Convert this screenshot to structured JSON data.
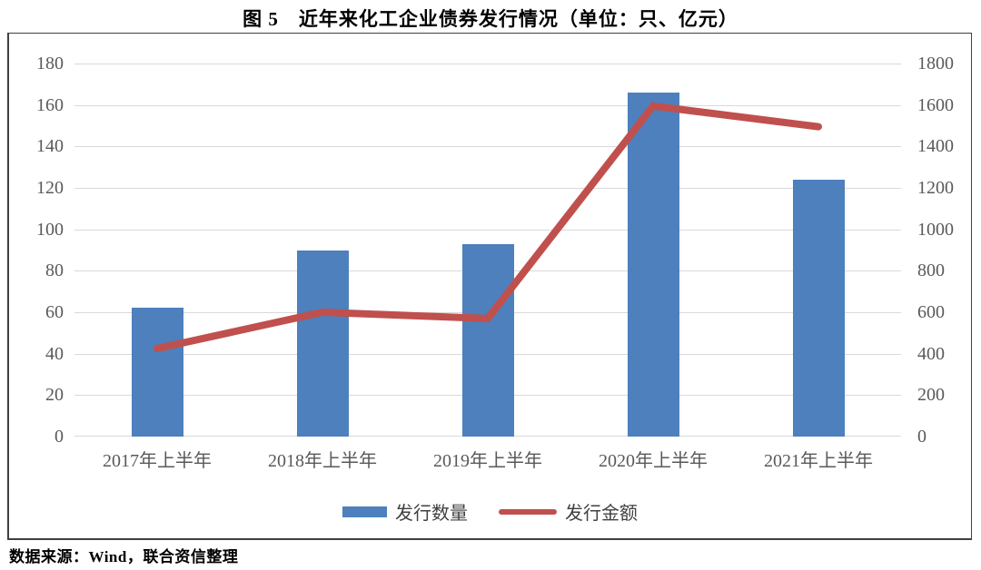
{
  "figure": {
    "title": "图 5　近年来化工企业债券发行情况（单位：只、亿元）",
    "source": "数据来源：Wind，联合资信整理"
  },
  "chart_data": {
    "type": "bar",
    "subtype": "bar-line-combo-dual-axis",
    "title": "图 5　近年来化工企业债券发行情况（单位：只、亿元）",
    "categories": [
      "2017年上半年",
      "2018年上半年",
      "2019年上半年",
      "2020年上半年",
      "2021年上半年"
    ],
    "series": [
      {
        "name": "发行数量",
        "type": "bar",
        "axis": "left",
        "unit": "只",
        "color": "#4d80bc",
        "values": [
          62,
          90,
          93,
          166,
          124
        ]
      },
      {
        "name": "发行金额",
        "type": "line",
        "axis": "right",
        "unit": "亿元",
        "color": "#c0504d",
        "values": [
          425,
          600,
          570,
          1595,
          1495
        ]
      }
    ],
    "left_axis": {
      "min": 0,
      "max": 180,
      "step": 20,
      "ticks": [
        180,
        160,
        140,
        120,
        100,
        80,
        60,
        40,
        20,
        0
      ]
    },
    "right_axis": {
      "min": 0,
      "max": 1800,
      "step": 200,
      "ticks": [
        1800,
        1600,
        1400,
        1200,
        1000,
        800,
        600,
        400,
        200,
        0
      ]
    },
    "grid": true,
    "gridline_color": "#d9d9d9",
    "legend_position": "bottom",
    "xlabel": "",
    "ylabel": ""
  }
}
